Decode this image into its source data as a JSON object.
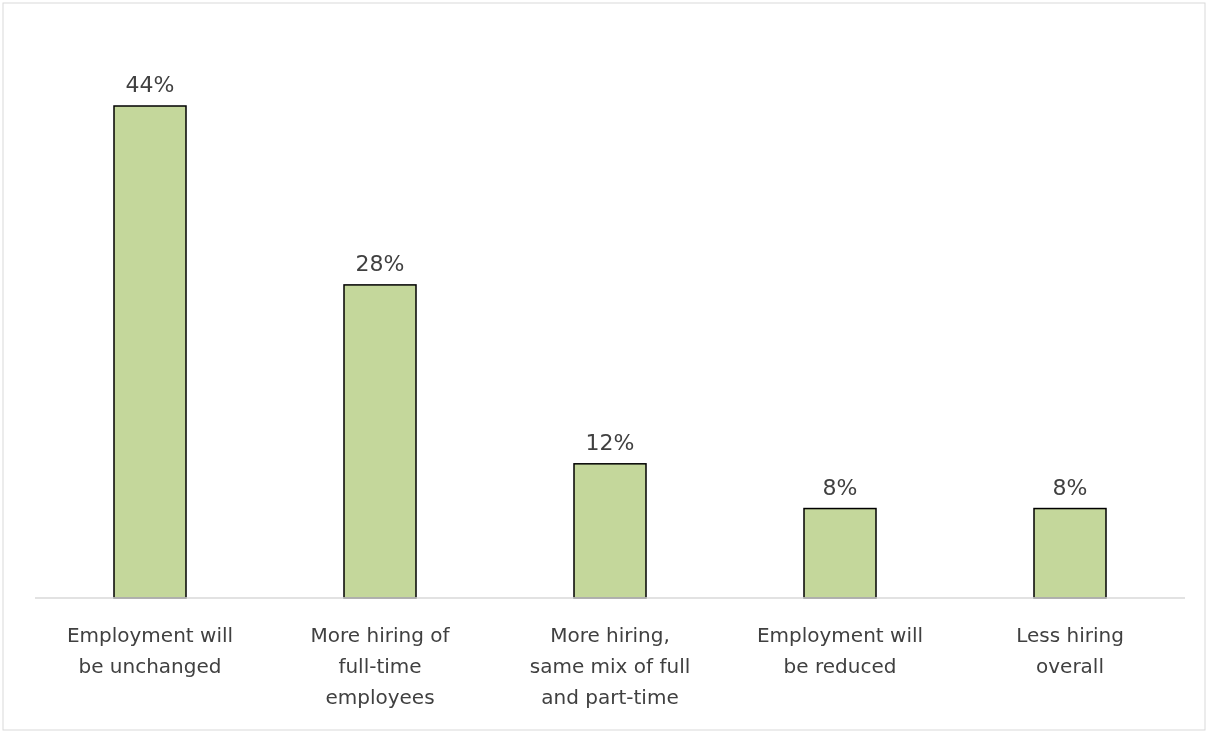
{
  "chart_data": {
    "type": "bar",
    "categories": [
      "Employment will be unchanged",
      "More hiring of full-time employees",
      "More hiring, same mix of full and part-time",
      "Employment will be reduced",
      "Less hiring overall"
    ],
    "values": [
      44,
      28,
      12,
      8,
      8
    ],
    "color": "#c4d79b",
    "value_labels": [
      "44%",
      "28%",
      "12%",
      "8%",
      "8%"
    ]
  }
}
